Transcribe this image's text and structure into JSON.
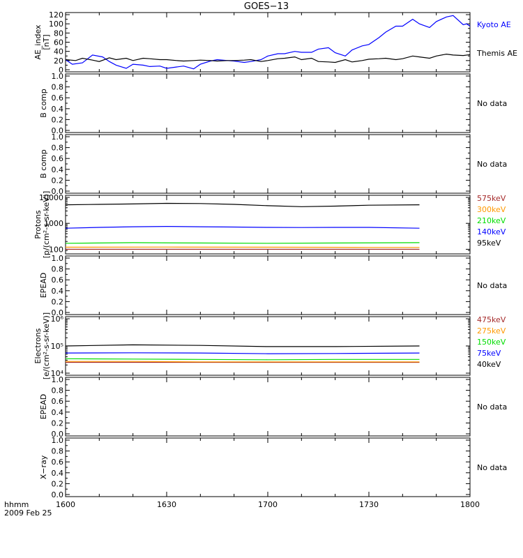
{
  "title": "GOES−13",
  "time_axis": {
    "tick_labels": [
      "1600",
      "1630",
      "1700",
      "1730",
      "1800"
    ],
    "label_line1": "hhmm",
    "label_line2": "2009 Feb 25"
  },
  "no_data_text": "No data",
  "chart_data": [
    {
      "type": "line",
      "ylabel": [
        "AE_index",
        "[nT]"
      ],
      "ylim": [
        0,
        120
      ],
      "yticks": [
        "0",
        "20",
        "40",
        "60",
        "80",
        "100",
        "120"
      ],
      "yticks_minor": [
        10,
        30,
        50,
        70,
        90,
        110
      ],
      "series": [
        {
          "name": "Kyoto AE",
          "color": "#0000ff",
          "x": [
            0,
            2,
            5,
            8,
            11,
            13,
            15,
            18,
            20,
            23,
            25,
            28,
            30,
            33,
            35,
            38,
            40,
            43,
            45,
            48,
            50,
            53,
            55,
            58,
            60,
            63,
            65,
            68,
            70,
            73,
            75,
            78,
            80,
            83,
            85,
            88,
            90,
            93,
            95,
            98,
            100,
            103,
            105,
            108,
            110,
            113,
            115,
            118,
            119,
            120
          ],
          "y": [
            22,
            12,
            15,
            32,
            28,
            18,
            10,
            3,
            12,
            10,
            7,
            8,
            3,
            6,
            8,
            2,
            12,
            19,
            22,
            20,
            19,
            16,
            18,
            22,
            30,
            35,
            35,
            40,
            38,
            38,
            45,
            48,
            37,
            30,
            43,
            52,
            55,
            70,
            82,
            95,
            95,
            110,
            100,
            92,
            105,
            115,
            118,
            98,
            100,
            95
          ]
        },
        {
          "name": "Themis AE",
          "color": "#000000",
          "x": [
            0,
            3,
            5,
            8,
            10,
            13,
            15,
            18,
            20,
            23,
            25,
            28,
            30,
            33,
            35,
            38,
            40,
            43,
            45,
            48,
            50,
            53,
            55,
            58,
            60,
            63,
            65,
            68,
            70,
            73,
            75,
            78,
            80,
            83,
            85,
            88,
            90,
            93,
            95,
            98,
            100,
            103,
            105,
            108,
            110,
            113,
            115,
            118,
            120
          ],
          "y": [
            22,
            20,
            25,
            21,
            18,
            26,
            22,
            25,
            20,
            25,
            24,
            22,
            22,
            20,
            19,
            20,
            21,
            20,
            19,
            20,
            20,
            21,
            22,
            18,
            20,
            24,
            25,
            28,
            22,
            25,
            18,
            17,
            16,
            22,
            17,
            20,
            23,
            24,
            25,
            22,
            24,
            30,
            28,
            25,
            30,
            34,
            32,
            31,
            33
          ]
        }
      ]
    },
    {
      "type": "line",
      "ylabel": [
        "B comp"
      ],
      "ylim": [
        0,
        1
      ],
      "yticks": [
        "0.0",
        "0.2",
        "0.4",
        "0.6",
        "0.8",
        "1.0"
      ],
      "yticks_minor": [
        0.1,
        0.3,
        0.5,
        0.7,
        0.9
      ],
      "series": []
    },
    {
      "type": "line",
      "ylabel": [
        "B comp"
      ],
      "ylim": [
        0,
        1
      ],
      "yticks": [
        "0.0",
        "0.2",
        "0.4",
        "0.6",
        "0.8",
        "1.0"
      ],
      "yticks_minor": [
        0.1,
        0.3,
        0.5,
        0.7,
        0.9
      ],
      "series": []
    },
    {
      "type": "line",
      "ylabel": [
        "Protons",
        "[p/(cm²-s-sr-keV)]"
      ],
      "scale": "log",
      "ylim": [
        80,
        10000
      ],
      "yticks": [
        "100",
        "1000",
        "10000"
      ],
      "series": [
        {
          "name": "575keV",
          "color": "#a52a2a",
          "x": [
            0,
            30,
            60,
            90,
            105
          ],
          "y": [
            100,
            100,
            100,
            100,
            100
          ]
        },
        {
          "name": "300keV",
          "color": "#ff9900",
          "x": [
            0,
            30,
            60,
            90,
            105
          ],
          "y": [
            120,
            122,
            120,
            118,
            118
          ]
        },
        {
          "name": "210keV",
          "color": "#00dd00",
          "x": [
            0,
            20,
            40,
            60,
            80,
            105
          ],
          "y": [
            170,
            180,
            175,
            170,
            175,
            180
          ]
        },
        {
          "name": "140keV",
          "color": "#0000ff",
          "x": [
            0,
            10,
            20,
            30,
            40,
            50,
            60,
            70,
            80,
            90,
            105
          ],
          "y": [
            650,
            700,
            740,
            760,
            740,
            720,
            700,
            690,
            700,
            700,
            650
          ]
        },
        {
          "name": "95keV",
          "color": "#000000",
          "x": [
            0,
            10,
            20,
            30,
            40,
            50,
            60,
            70,
            80,
            90,
            105
          ],
          "y": [
            5200,
            5400,
            5600,
            5900,
            5800,
            5400,
            4800,
            4400,
            4600,
            5000,
            5200
          ]
        }
      ]
    },
    {
      "type": "line",
      "ylabel": [
        "EPEAD"
      ],
      "ylim": [
        0,
        1
      ],
      "yticks": [
        "0.0",
        "0.2",
        "0.4",
        "0.6",
        "0.8",
        "1.0"
      ],
      "yticks_minor": [
        0.1,
        0.3,
        0.5,
        0.7,
        0.9
      ],
      "series": []
    },
    {
      "type": "line",
      "ylabel": [
        "Electrons",
        "[e/(cm²-s-sr-keV)]"
      ],
      "scale": "log",
      "ylim": [
        10000,
        1000000
      ],
      "yticks": [
        "10⁴",
        "10⁵",
        "10⁶"
      ],
      "series": [
        {
          "name": "475keV",
          "color": "#a52a2a",
          "x": [
            0,
            20,
            40,
            60,
            80,
            105
          ],
          "y": [
            25000,
            25000,
            25000,
            25000,
            25000,
            25000
          ]
        },
        {
          "name": "275keV",
          "color": "#ff9900",
          "x": [
            0,
            20,
            40,
            60,
            80,
            105
          ],
          "y": [
            27000,
            27000,
            26000,
            26000,
            26000,
            26000
          ]
        },
        {
          "name": "150keV",
          "color": "#00dd00",
          "x": [
            0,
            20,
            40,
            60,
            80,
            105
          ],
          "y": [
            34000,
            33000,
            32000,
            31000,
            32000,
            32000
          ]
        },
        {
          "name": "75keV",
          "color": "#0000ff",
          "x": [
            0,
            20,
            40,
            60,
            80,
            105
          ],
          "y": [
            55000,
            56000,
            55000,
            52000,
            53000,
            55000
          ]
        },
        {
          "name": "40keV",
          "color": "#000000",
          "x": [
            0,
            20,
            40,
            60,
            80,
            105
          ],
          "y": [
            100000,
            110000,
            105000,
            95000,
            95000,
            100000
          ]
        }
      ]
    },
    {
      "type": "line",
      "ylabel": [
        "EPEAD"
      ],
      "ylim": [
        0,
        1
      ],
      "yticks": [
        "0.0",
        "0.2",
        "0.4",
        "0.6",
        "0.8",
        "1.0"
      ],
      "yticks_minor": [
        0.1,
        0.3,
        0.5,
        0.7,
        0.9
      ],
      "series": []
    },
    {
      "type": "line",
      "ylabel": [
        "X−ray"
      ],
      "ylim": [
        0,
        1
      ],
      "yticks": [
        "0.0",
        "0.2",
        "0.4",
        "0.6",
        "0.8",
        "1.0"
      ],
      "yticks_minor": [
        0.1,
        0.3,
        0.5,
        0.7,
        0.9
      ],
      "series": []
    }
  ]
}
